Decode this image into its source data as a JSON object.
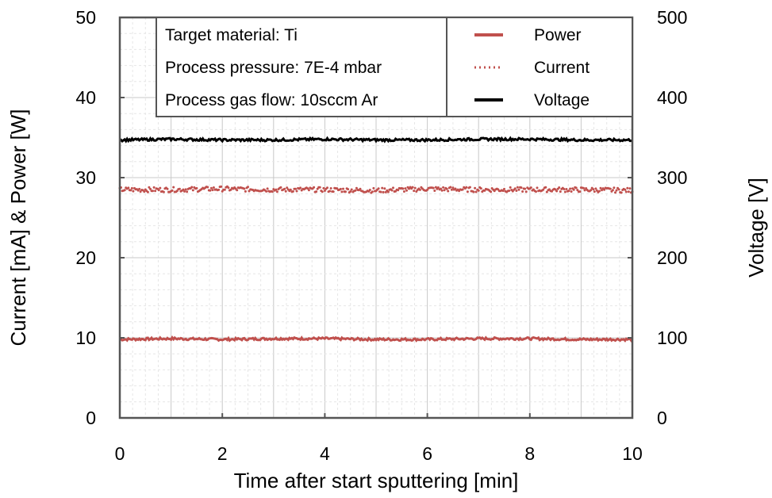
{
  "chart_data": {
    "type": "line",
    "title": "",
    "xlabel": "Time after start sputtering [min]",
    "ylabel_left": "Current [mA] & Power [W]",
    "ylabel_right": "Voltage [V]",
    "xlim": [
      0,
      10
    ],
    "ylim_left": [
      0,
      50
    ],
    "ylim_right": [
      0,
      500
    ],
    "x_ticks": [
      "0",
      "2",
      "4",
      "6",
      "8",
      "10"
    ],
    "y_left_ticks": [
      "0",
      "10",
      "20",
      "30",
      "40",
      "50"
    ],
    "y_right_ticks": [
      "0",
      "100",
      "200",
      "300",
      "400",
      "500"
    ],
    "grid": true,
    "legend_placement": "top-right",
    "annotations": [
      "Target material: Ti",
      "Process pressure: 7E-4 mbar",
      "Process gas flow: 10sccm Ar"
    ],
    "series": [
      {
        "name": "Power",
        "axis": "left",
        "style": "solid",
        "color": "#c0504d",
        "x": [
          0,
          1,
          2,
          3,
          4,
          5,
          6,
          7,
          8,
          9,
          10
        ],
        "values": [
          9.8,
          9.9,
          9.8,
          9.9,
          9.9,
          9.8,
          9.8,
          9.9,
          9.9,
          9.8,
          9.8
        ]
      },
      {
        "name": "Current",
        "axis": "left",
        "style": "dotted",
        "color": "#c0504d",
        "x": [
          0,
          1,
          2,
          3,
          4,
          5,
          6,
          7,
          8,
          9,
          10
        ],
        "values": [
          28.5,
          28.5,
          28.6,
          28.5,
          28.5,
          28.4,
          28.6,
          28.5,
          28.5,
          28.5,
          28.4
        ]
      },
      {
        "name": "Voltage",
        "axis": "right",
        "style": "solid",
        "color": "#000000",
        "x": [
          0,
          1,
          2,
          3,
          4,
          5,
          6,
          7,
          8,
          9,
          10
        ],
        "values": [
          347,
          348,
          347,
          347,
          348,
          347,
          347,
          348,
          348,
          347,
          347
        ]
      }
    ]
  }
}
